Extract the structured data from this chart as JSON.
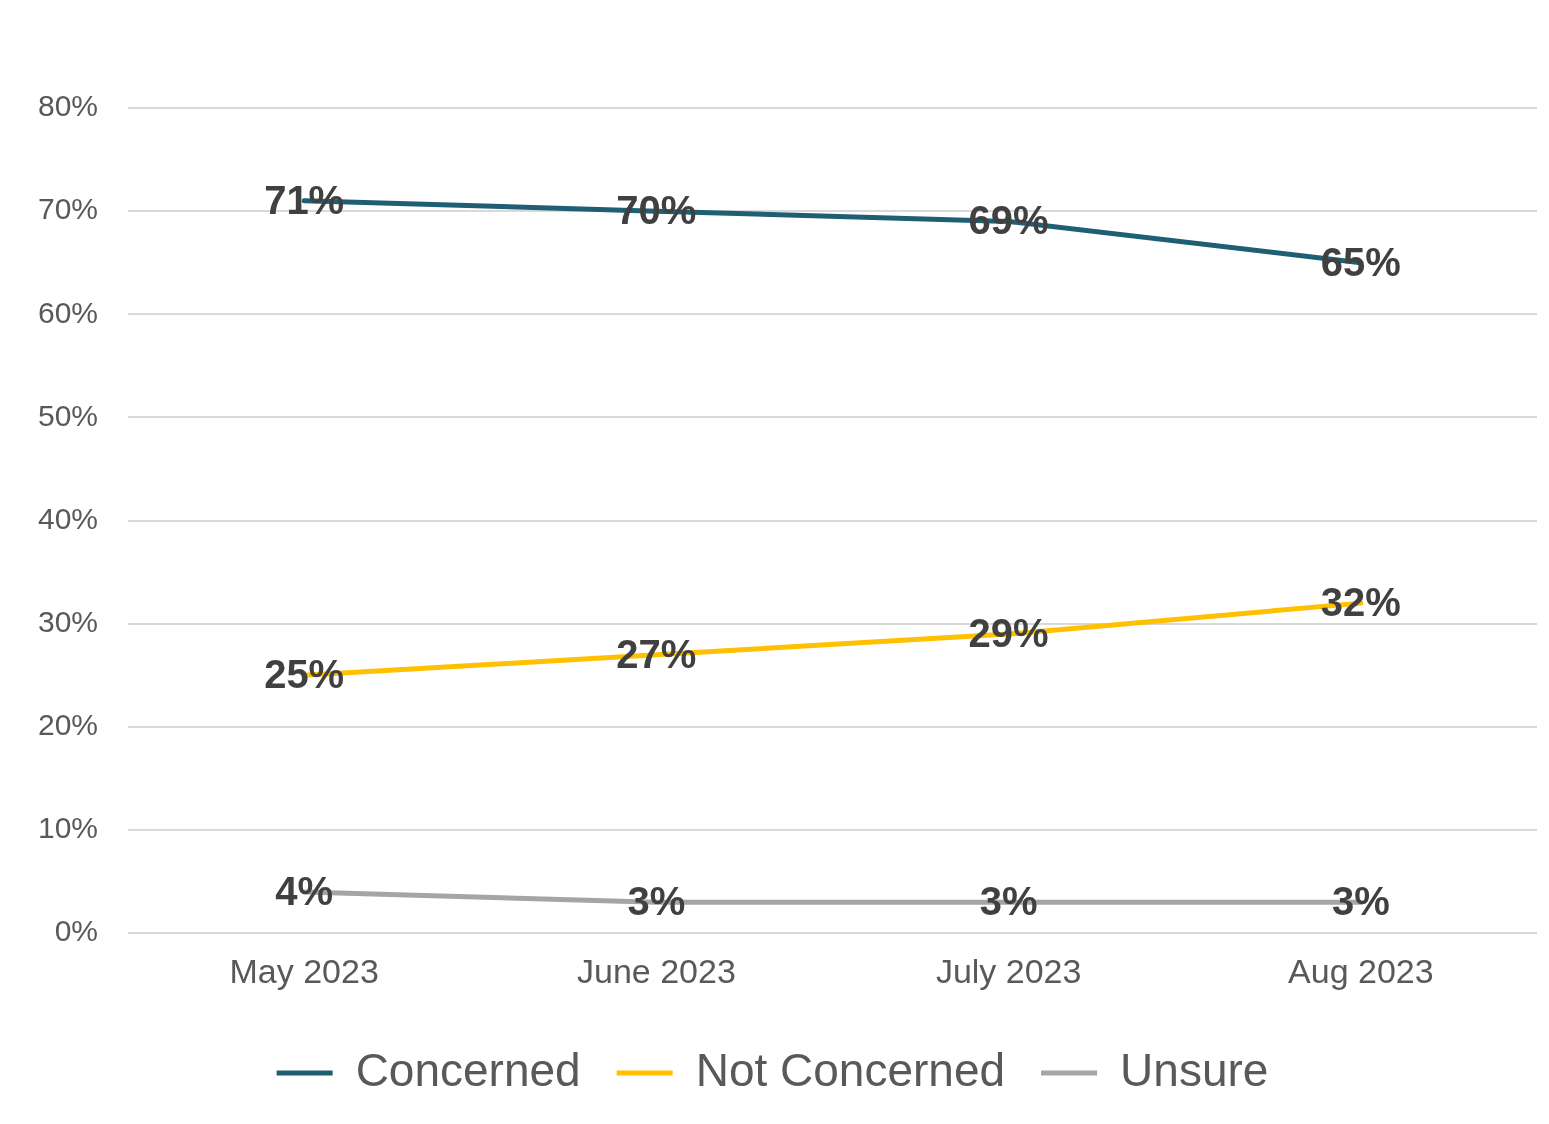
{
  "chart_data": {
    "type": "line",
    "categories": [
      "May 2023",
      "June 2023",
      "July 2023",
      "Aug 2023"
    ],
    "series": [
      {
        "name": "Concerned",
        "color": "#1f5f73",
        "values": [
          71,
          70,
          69,
          65
        ],
        "value_labels": [
          "71%",
          "70%",
          "69%",
          "65%"
        ]
      },
      {
        "name": "Not Concerned",
        "color": "#ffc000",
        "values": [
          25,
          27,
          29,
          32
        ],
        "value_labels": [
          "25%",
          "27%",
          "29%",
          "32%"
        ]
      },
      {
        "name": "Unsure",
        "color": "#a5a5a5",
        "values": [
          4,
          3,
          3,
          3
        ],
        "value_labels": [
          "4%",
          "3%",
          "3%",
          "3%"
        ]
      }
    ],
    "ylim": [
      0,
      80
    ],
    "yticks": [
      {
        "value": 0,
        "label": "0%"
      },
      {
        "value": 10,
        "label": "10%"
      },
      {
        "value": 20,
        "label": "20%"
      },
      {
        "value": 30,
        "label": "30%"
      },
      {
        "value": 40,
        "label": "40%"
      },
      {
        "value": 50,
        "label": "50%"
      },
      {
        "value": 60,
        "label": "60%"
      },
      {
        "value": 70,
        "label": "70%"
      },
      {
        "value": 80,
        "label": "80%"
      }
    ],
    "grid": "y",
    "legend": "bottom",
    "marker": "none",
    "line_style": "solid"
  }
}
